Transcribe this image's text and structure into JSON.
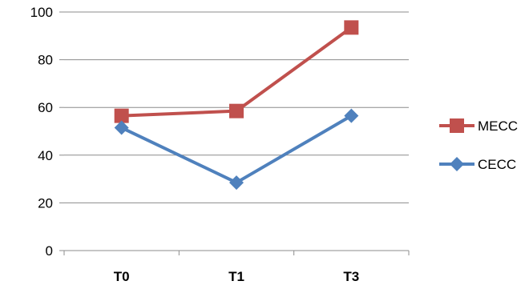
{
  "chart_data": {
    "type": "line",
    "categories": [
      "T0",
      "T1",
      "T3"
    ],
    "ylim": [
      0,
      100
    ],
    "yticks": [
      0,
      20,
      40,
      60,
      80,
      100
    ],
    "grid": true,
    "legend_position": "right",
    "series": [
      {
        "name": "MECC",
        "values": [
          56.5,
          58.5,
          93.5
        ],
        "color": "#C0504D",
        "marker": "square"
      },
      {
        "name": "CECC",
        "values": [
          51.5,
          28.5,
          56.5
        ],
        "color": "#4F81BD",
        "marker": "diamond"
      }
    ]
  }
}
